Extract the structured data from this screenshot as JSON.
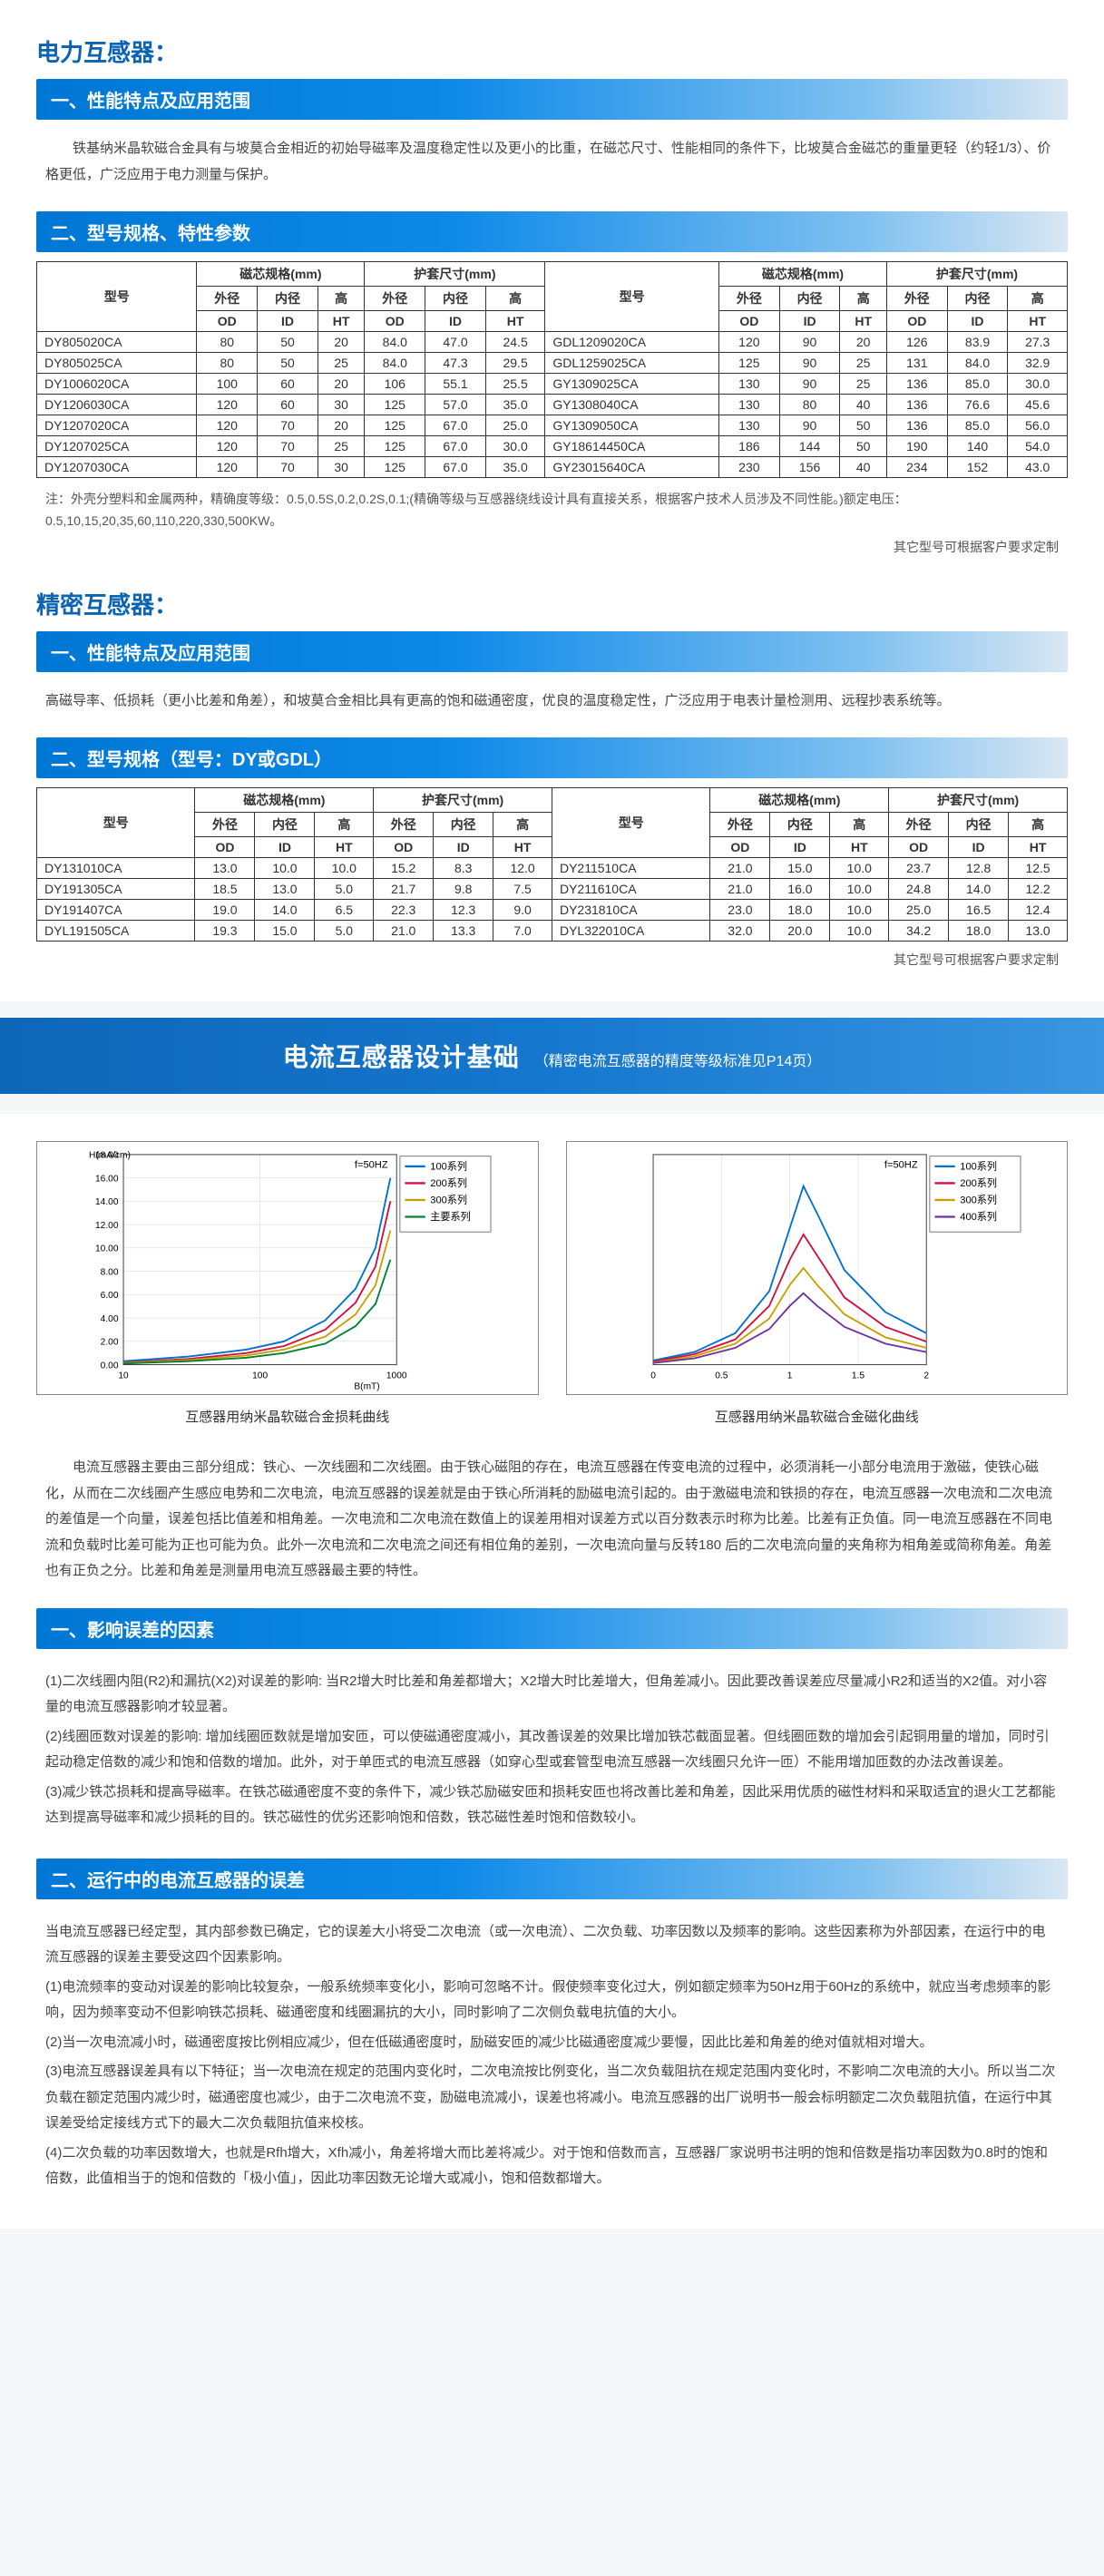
{
  "titles": {
    "power": "电力互感器：",
    "precision": "精密互感器："
  },
  "sections": {
    "s1": "一、性能特点及应用范围",
    "s2": "二、型号规格、特性参数",
    "s1b": "一、性能特点及应用范围",
    "s2b": "二、型号规格（型号：DY或GDL）",
    "factors": "一、影响误差的因素",
    "running": "二、运行中的电流互感器的误差"
  },
  "paras": {
    "p1": "铁基纳米晶软磁合金具有与坡莫合金相近的初始导磁率及温度稳定性以及更小的比重，在磁芯尺寸、性能相同的条件下，比坡莫合金磁芯的重量更轻（约轻1/3）、价格更低，广泛应用于电力测量与保护。",
    "p2": "高磁导率、低损耗（更小比差和角差），和坡莫合金相比具有更高的饱和磁通密度，优良的温度稳定性，广泛应用于电表计量检测用、远程抄表系统等。",
    "design": "电流互感器主要由三部分组成：铁心、一次线圈和二次线圈。由于铁心磁阻的存在，电流互感器在传变电流的过程中，必须消耗一小部分电流用于激磁，使铁心磁化，从而在二次线圈产生感应电势和二次电流，电流互感器的误差就是由于铁心所消耗的励磁电流引起的。由于激磁电流和铁损的存在，电流互感器一次电流和二次电流的差值是一个向量，误差包括比值差和相角差。一次电流和二次电流在数值上的误差用相对误差方式以百分数表示时称为比差。比差有正负值。同一电流互感器在不同电流和负载时比差可能为正也可能为负。此外一次电流和二次电流之间还有相位角的差别，一次电流向量与反转180 后的二次电流向量的夹角称为相角差或简称角差。角差也有正负之分。比差和角差是测量用电流互感器最主要的特性。",
    "factors": "(1)二次线圈内阻(R2)和漏抗(X2)对误差的影响: 当R2增大时比差和角差都增大；X2增大时比差增大，但角差减小。因此要改善误差应尽量减小R2和适当的X2值。对小容量的电流互感器影响才较显著。\n(2)线圈匝数对误差的影响: 增加线圈匝数就是增加安匝，可以使磁通密度减小，其改善误差的效果比增加铁芯截面显著。但线圈匝数的增加会引起铜用量的增加，同时引起动稳定倍数的减少和饱和倍数的增加。此外，对于单匝式的电流互感器（如穿心型或套管型电流互感器一次线圈只允许一匝）不能用增加匝数的办法改善误差。\n(3)减少铁芯损耗和提高导磁率。在铁芯磁通密度不变的条件下，减少铁芯励磁安匝和损耗安匝也将改善比差和角差，因此采用优质的磁性材料和采取适宜的退火工艺都能达到提高导磁率和减少损耗的目的。铁芯磁性的优劣还影响饱和倍数，铁芯磁性差时饱和倍数较小。",
    "running": "当电流互感器已经定型，其内部参数已确定，它的误差大小将受二次电流（或一次电流）、二次负载、功率因数以及频率的影响。这些因素称为外部因素，在运行中的电流互感器的误差主要受这四个因素影响。\n(1)电流频率的变动对误差的影响比较复杂，一般系统频率变化小，影响可忽略不计。假使频率变化过大，例如额定频率为50Hz用于60Hz的系统中，就应当考虑频率的影响，因为频率变动不但影响铁芯损耗、磁通密度和线圈漏抗的大小，同时影响了二次侧负载电抗值的大小。\n(2)当一次电流减小时，磁通密度按比例相应减少，但在低磁通密度时，励磁安匝的减少比磁通密度减少要慢，因此比差和角差的绝对值就相对增大。\n(3)电流互感器误差具有以下特征；当一次电流在规定的范围内变化时，二次电流按比例变化，当二次负载阻抗在规定范围内变化时，不影响二次电流的大小。所以当二次负载在额定范围内减少时，磁通密度也减少，由于二次电流不变，励磁电流减小，误差也将减小。电流互感器的出厂说明书一般会标明额定二次负载阻抗值，在运行中其误差受给定接线方式下的最大二次负载阻抗值来校核。\n(4)二次负载的功率因数增大，也就是Rfh增大，Xfh减小，角差将增大而比差将减少。对于饱和倍数而言，互感器厂家说明书注明的饱和倍数是指功率因数为0.8时的饱和倍数，此值相当于的饱和倍数的「极小值」，因此功率因数无论增大或减小，饱和倍数都增大。"
  },
  "table1": {
    "head1": [
      "型号",
      "磁芯规格(mm)",
      "护套尺寸(mm)",
      "型号",
      "磁芯规格(mm)",
      "护套尺寸(mm)"
    ],
    "head2": [
      "外径",
      "内径",
      "高",
      "外径",
      "内径",
      "高",
      "外径",
      "内径",
      "高",
      "外径",
      "内径",
      "高"
    ],
    "head3": [
      "OD",
      "ID",
      "HT",
      "OD",
      "ID",
      "HT",
      "OD",
      "ID",
      "HT",
      "OD",
      "ID",
      "HT"
    ],
    "rows": [
      [
        "DY805020CA",
        "80",
        "50",
        "20",
        "84.0",
        "47.0",
        "24.5",
        "GDL1209020CA",
        "120",
        "90",
        "20",
        "126",
        "83.9",
        "27.3"
      ],
      [
        "DY805025CA",
        "80",
        "50",
        "25",
        "84.0",
        "47.3",
        "29.5",
        "GDL1259025CA",
        "125",
        "90",
        "25",
        "131",
        "84.0",
        "32.9"
      ],
      [
        "DY1006020CA",
        "100",
        "60",
        "20",
        "106",
        "55.1",
        "25.5",
        "GY1309025CA",
        "130",
        "90",
        "25",
        "136",
        "85.0",
        "30.0"
      ],
      [
        "DY1206030CA",
        "120",
        "60",
        "30",
        "125",
        "57.0",
        "35.0",
        "GY1308040CA",
        "130",
        "80",
        "40",
        "136",
        "76.6",
        "45.6"
      ],
      [
        "DY1207020CA",
        "120",
        "70",
        "20",
        "125",
        "67.0",
        "25.0",
        "GY1309050CA",
        "130",
        "90",
        "50",
        "136",
        "85.0",
        "56.0"
      ],
      [
        "DY1207025CA",
        "120",
        "70",
        "25",
        "125",
        "67.0",
        "30.0",
        "GY18614450CA",
        "186",
        "144",
        "50",
        "190",
        "140",
        "54.0"
      ],
      [
        "DY1207030CA",
        "120",
        "70",
        "30",
        "125",
        "67.0",
        "35.0",
        "GY23015640CA",
        "230",
        "156",
        "40",
        "234",
        "152",
        "43.0"
      ]
    ],
    "note": "注：外壳分塑料和金属两种，精确度等级：0.5,0.5S,0.2,0.2S,0.1;(精确等级与互感器绕线设计具有直接关系，根据客户技术人员涉及不同性能。)额定电压：0.5,10,15,20,35,60,110,220,330,500KW。",
    "rightnote": "其它型号可根据客户要求定制"
  },
  "table2": {
    "head1": [
      "型号",
      "磁芯规格(mm)",
      "护套尺寸(mm)",
      "型号",
      "磁芯规格(mm)",
      "护套尺寸(mm)"
    ],
    "head2": [
      "外径",
      "内径",
      "高",
      "外径",
      "内径",
      "高",
      "外径",
      "内径",
      "高",
      "外径",
      "内径",
      "高"
    ],
    "head3": [
      "OD",
      "ID",
      "HT",
      "OD",
      "ID",
      "HT",
      "OD",
      "ID",
      "HT",
      "OD",
      "ID",
      "HT"
    ],
    "rows": [
      [
        "DY131010CA",
        "13.0",
        "10.0",
        "10.0",
        "15.2",
        "8.3",
        "12.0",
        "DY211510CA",
        "21.0",
        "15.0",
        "10.0",
        "23.7",
        "12.8",
        "12.5"
      ],
      [
        "DY191305CA",
        "18.5",
        "13.0",
        "5.0",
        "21.7",
        "9.8",
        "7.5",
        "DY211610CA",
        "21.0",
        "16.0",
        "10.0",
        "24.8",
        "14.0",
        "12.2"
      ],
      [
        "DY191407CA",
        "19.0",
        "14.0",
        "6.5",
        "22.3",
        "12.3",
        "9.0",
        "DY231810CA",
        "23.0",
        "18.0",
        "10.0",
        "25.0",
        "16.5",
        "12.4"
      ],
      [
        "DYL191505CA",
        "19.3",
        "15.0",
        "5.0",
        "21.0",
        "13.3",
        "7.0",
        "DYL322010CA",
        "32.0",
        "20.0",
        "10.0",
        "34.2",
        "18.0",
        "13.0"
      ]
    ],
    "rightnote": "其它型号可根据客户要求定制"
  },
  "banner": {
    "title": "电流互感器设计基础",
    "sub": "（精密电流互感器的精度等级标准见P14页）"
  },
  "chart1": {
    "caption": "互感器用纳米晶软磁合金损耗曲线",
    "ylabel": "H(mA/cm)",
    "xlabel": "B(mT)",
    "xlim": [
      10,
      1000
    ],
    "ylim": [
      0,
      18
    ],
    "ytick": [
      0,
      2,
      4,
      6,
      8,
      10,
      12,
      14,
      16,
      18
    ],
    "xtick": [
      10,
      100,
      1000
    ],
    "xlog": true,
    "legend": [
      "100系列",
      "200系列",
      "300系列",
      "主要系列"
    ],
    "colors": [
      "#0070d0",
      "#d01040",
      "#c8a000",
      "#008030"
    ],
    "series": [
      [
        [
          10,
          0.3
        ],
        [
          30,
          0.7
        ],
        [
          80,
          1.3
        ],
        [
          150,
          2.0
        ],
        [
          300,
          3.8
        ],
        [
          500,
          6.5
        ],
        [
          700,
          10
        ],
        [
          900,
          16
        ]
      ],
      [
        [
          10,
          0.2
        ],
        [
          30,
          0.5
        ],
        [
          80,
          1.0
        ],
        [
          150,
          1.6
        ],
        [
          300,
          3.0
        ],
        [
          500,
          5.3
        ],
        [
          700,
          8.4
        ],
        [
          900,
          14
        ]
      ],
      [
        [
          10,
          0.15
        ],
        [
          30,
          0.4
        ],
        [
          80,
          0.8
        ],
        [
          150,
          1.3
        ],
        [
          300,
          2.4
        ],
        [
          500,
          4.3
        ],
        [
          700,
          6.8
        ],
        [
          900,
          11.5
        ]
      ],
      [
        [
          10,
          0.1
        ],
        [
          30,
          0.3
        ],
        [
          80,
          0.6
        ],
        [
          150,
          1.0
        ],
        [
          300,
          1.8
        ],
        [
          500,
          3.3
        ],
        [
          700,
          5.2
        ],
        [
          900,
          9
        ]
      ]
    ],
    "note": "f=50HZ"
  },
  "chart2": {
    "caption": "互感器用纳米晶软磁合金磁化曲线",
    "xlim": [
      0,
      2
    ],
    "ylim": [
      0,
      1
    ],
    "xtick": [
      0,
      0.5,
      1,
      1.5,
      2
    ],
    "legend": [
      "100系列",
      "200系列",
      "300系列",
      "400系列"
    ],
    "colors": [
      "#0070d0",
      "#d01040",
      "#c8a000",
      "#7030a0"
    ],
    "series": [
      [
        [
          0,
          0.02
        ],
        [
          0.3,
          0.06
        ],
        [
          0.6,
          0.15
        ],
        [
          0.85,
          0.35
        ],
        [
          1.0,
          0.65
        ],
        [
          1.1,
          0.85
        ],
        [
          1.2,
          0.72
        ],
        [
          1.4,
          0.45
        ],
        [
          1.7,
          0.25
        ],
        [
          2.0,
          0.15
        ]
      ],
      [
        [
          0,
          0.015
        ],
        [
          0.3,
          0.05
        ],
        [
          0.6,
          0.12
        ],
        [
          0.85,
          0.28
        ],
        [
          1.0,
          0.5
        ],
        [
          1.1,
          0.62
        ],
        [
          1.2,
          0.52
        ],
        [
          1.4,
          0.32
        ],
        [
          1.7,
          0.18
        ],
        [
          2.0,
          0.11
        ]
      ],
      [
        [
          0,
          0.01
        ],
        [
          0.3,
          0.04
        ],
        [
          0.6,
          0.1
        ],
        [
          0.85,
          0.22
        ],
        [
          1.0,
          0.38
        ],
        [
          1.1,
          0.46
        ],
        [
          1.2,
          0.38
        ],
        [
          1.4,
          0.24
        ],
        [
          1.7,
          0.13
        ],
        [
          2.0,
          0.08
        ]
      ],
      [
        [
          0,
          0.008
        ],
        [
          0.3,
          0.03
        ],
        [
          0.6,
          0.08
        ],
        [
          0.85,
          0.17
        ],
        [
          1.0,
          0.28
        ],
        [
          1.1,
          0.34
        ],
        [
          1.2,
          0.28
        ],
        [
          1.4,
          0.18
        ],
        [
          1.7,
          0.1
        ],
        [
          2.0,
          0.06
        ]
      ]
    ],
    "note": "f=50HZ"
  }
}
